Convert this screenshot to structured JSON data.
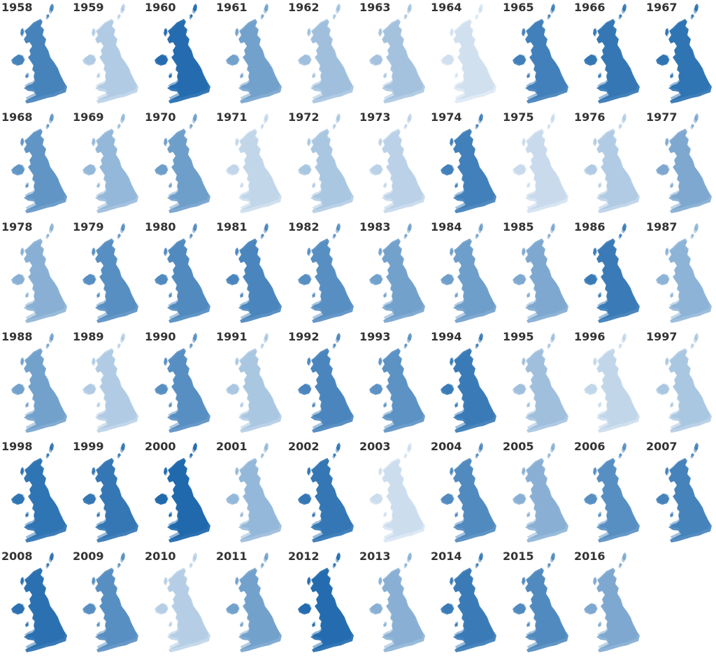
{
  "palette": {
    "light": "#f2f7fc",
    "dark": "#1260a8"
  },
  "years": [
    {
      "year": "1958",
      "intensity": 0.7
    },
    {
      "year": "1959",
      "intensity": 0.22
    },
    {
      "year": "1960",
      "intensity": 0.85
    },
    {
      "year": "1961",
      "intensity": 0.5
    },
    {
      "year": "1962",
      "intensity": 0.3
    },
    {
      "year": "1963",
      "intensity": 0.28
    },
    {
      "year": "1964",
      "intensity": 0.08
    },
    {
      "year": "1965",
      "intensity": 0.72
    },
    {
      "year": "1966",
      "intensity": 0.78
    },
    {
      "year": "1967",
      "intensity": 0.8
    },
    {
      "year": "1968",
      "intensity": 0.58
    },
    {
      "year": "1969",
      "intensity": 0.35
    },
    {
      "year": "1970",
      "intensity": 0.52
    },
    {
      "year": "1971",
      "intensity": 0.15
    },
    {
      "year": "1972",
      "intensity": 0.25
    },
    {
      "year": "1973",
      "intensity": 0.18
    },
    {
      "year": "1974",
      "intensity": 0.72
    },
    {
      "year": "1975",
      "intensity": 0.12
    },
    {
      "year": "1976",
      "intensity": 0.22
    },
    {
      "year": "1977",
      "intensity": 0.45
    },
    {
      "year": "1978",
      "intensity": 0.4
    },
    {
      "year": "1979",
      "intensity": 0.62
    },
    {
      "year": "1980",
      "intensity": 0.65
    },
    {
      "year": "1981",
      "intensity": 0.68
    },
    {
      "year": "1982",
      "intensity": 0.62
    },
    {
      "year": "1983",
      "intensity": 0.5
    },
    {
      "year": "1984",
      "intensity": 0.52
    },
    {
      "year": "1985",
      "intensity": 0.45
    },
    {
      "year": "1986",
      "intensity": 0.75
    },
    {
      "year": "1987",
      "intensity": 0.38
    },
    {
      "year": "1988",
      "intensity": 0.5
    },
    {
      "year": "1989",
      "intensity": 0.22
    },
    {
      "year": "1990",
      "intensity": 0.62
    },
    {
      "year": "1991",
      "intensity": 0.25
    },
    {
      "year": "1992",
      "intensity": 0.68
    },
    {
      "year": "1993",
      "intensity": 0.6
    },
    {
      "year": "1994",
      "intensity": 0.75
    },
    {
      "year": "1995",
      "intensity": 0.3
    },
    {
      "year": "1996",
      "intensity": 0.15
    },
    {
      "year": "1997",
      "intensity": 0.25
    },
    {
      "year": "1998",
      "intensity": 0.8
    },
    {
      "year": "1999",
      "intensity": 0.78
    },
    {
      "year": "2000",
      "intensity": 0.88
    },
    {
      "year": "2001",
      "intensity": 0.35
    },
    {
      "year": "2002",
      "intensity": 0.78
    },
    {
      "year": "2003",
      "intensity": 0.1
    },
    {
      "year": "2004",
      "intensity": 0.65
    },
    {
      "year": "2005",
      "intensity": 0.4
    },
    {
      "year": "2006",
      "intensity": 0.62
    },
    {
      "year": "2007",
      "intensity": 0.7
    },
    {
      "year": "2008",
      "intensity": 0.82
    },
    {
      "year": "2009",
      "intensity": 0.62
    },
    {
      "year": "2010",
      "intensity": 0.2
    },
    {
      "year": "2011",
      "intensity": 0.5
    },
    {
      "year": "2012",
      "intensity": 0.85
    },
    {
      "year": "2013",
      "intensity": 0.4
    },
    {
      "year": "2014",
      "intensity": 0.75
    },
    {
      "year": "2015",
      "intensity": 0.65
    },
    {
      "year": "2016",
      "intensity": 0.45
    }
  ]
}
